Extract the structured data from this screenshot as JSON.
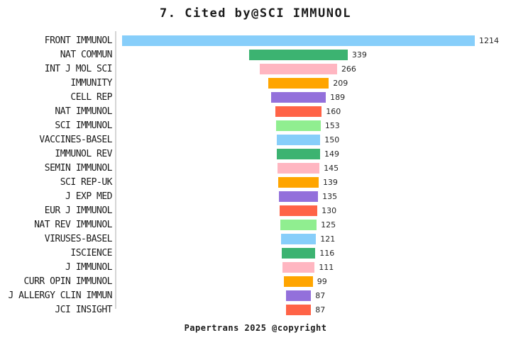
{
  "title": "7. Cited by@SCI IMMUNOL",
  "footer": "Papertrans 2025 @copyright",
  "chart_data": {
    "type": "bar",
    "orientation": "horizontal",
    "layout_style": "centered-funnel",
    "title": "7. Cited by@SCI IMMUNOL",
    "xlabel": "",
    "ylabel": "",
    "grid": false,
    "legend": "none",
    "axis_line_color": "#d6d6d6",
    "value_label_color": "#262626",
    "palette_cycle": [
      "#87CEFA",
      "#3CB371",
      "#FFB6C1",
      "#FFA500",
      "#9370DB",
      "#FF6347",
      "#90EE90"
    ],
    "categories": [
      "FRONT IMMUNOL",
      "NAT COMMUN",
      "INT J MOL SCI",
      "IMMUNITY",
      "CELL REP",
      "NAT IMMUNOL",
      "SCI IMMUNOL",
      "VACCINES-BASEL",
      "IMMUNOL REV",
      "SEMIN IMMUNOL",
      "SCI REP-UK",
      "J EXP MED",
      "EUR J IMMUNOL",
      "NAT REV IMMUNOL",
      "VIRUSES-BASEL",
      "ISCIENCE",
      "J IMMUNOL",
      "CURR OPIN IMMUNOL",
      "J ALLERGY CLIN IMMUN",
      "JCI INSIGHT"
    ],
    "values": [
      1214,
      339,
      266,
      209,
      189,
      160,
      153,
      150,
      149,
      145,
      139,
      135,
      130,
      125,
      121,
      116,
      111,
      99,
      87,
      87
    ],
    "colors": [
      "#87CEFA",
      "#3CB371",
      "#FFB6C1",
      "#FFA500",
      "#9370DB",
      "#FF6347",
      "#90EE90",
      "#87CEFA",
      "#3CB371",
      "#FFB6C1",
      "#FFA500",
      "#9370DB",
      "#FF6347",
      "#90EE90",
      "#87CEFA",
      "#3CB371",
      "#FFB6C1",
      "#FFA500",
      "#9370DB",
      "#FF6347"
    ],
    "xlim_px_scale_note": "bar width proportional to value, max bar 1214"
  }
}
